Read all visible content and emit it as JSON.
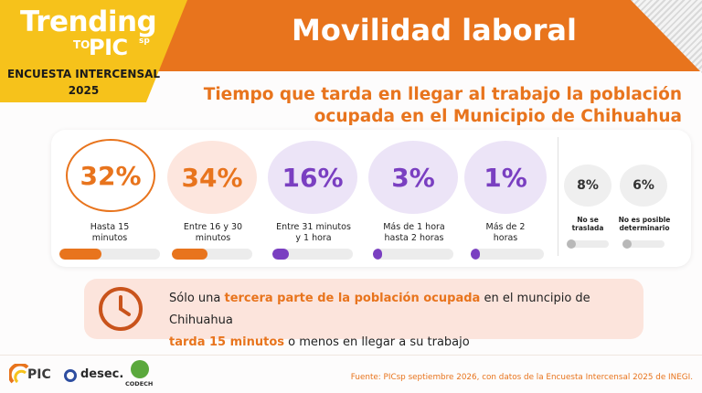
{
  "brand": {
    "line1": "Trending",
    "to": "TO",
    "pic": "PIC",
    "pic_suffix": "sp",
    "survey_line1": "ENCUESTA INTERCENSAL",
    "survey_line2": "2025"
  },
  "header": {
    "title": "Movilidad laboral"
  },
  "subtitle": {
    "line1": "Tiempo que tarda en llegar al trabajo la población",
    "line2": "ocupada en el Municipio de Chihuahua"
  },
  "stats": [
    {
      "value": "32%",
      "label_l1": "Hasta 15",
      "label_l2": "minutos",
      "fraction": 0.32,
      "color": "#e8741d",
      "circle_bg": "#ffffff",
      "ring": "#e8741d"
    },
    {
      "value": "34%",
      "label_l1": "Entre 16 y 30",
      "label_l2": "minutos",
      "fraction": 0.34,
      "color": "#e8741d",
      "circle_bg": "#fde6de",
      "ring": ""
    },
    {
      "value": "16%",
      "label_l1": "Entre 31 minutos",
      "label_l2": "y 1 hora",
      "fraction": 0.16,
      "color": "#7a3fc1",
      "circle_bg": "#ece4f7",
      "ring": ""
    },
    {
      "value": "3%",
      "label_l1": "Más de 1 hora",
      "label_l2": "hasta 2 horas",
      "fraction": 0.03,
      "color": "#7a3fc1",
      "circle_bg": "#ece4f7",
      "ring": ""
    },
    {
      "value": "1%",
      "label_l1": "Más de 2",
      "label_l2": "horas",
      "fraction": 0.01,
      "color": "#7a3fc1",
      "circle_bg": "#ece4f7",
      "ring": ""
    }
  ],
  "minor_stats": [
    {
      "value": "8%",
      "label_l1": "No se",
      "label_l2": "traslada",
      "fraction": 0.08
    },
    {
      "value": "6%",
      "label_l1": "No es posible",
      "label_l2": "determinario",
      "fraction": 0.06
    }
  ],
  "callout": {
    "icon": "clock-icon",
    "part1": "Sólo una ",
    "highlight1": "tercera parte de la población ocupada",
    "part2": " en el muncipio de Chihuahua",
    "highlight2": "tarda 15 minutos",
    "part3": " o menos en llegar a su trabajo"
  },
  "footer": {
    "logo_pic": "PIC",
    "logo_desec": "desec.",
    "logo_codech": "CODECH",
    "source": "Fuente: PICsp septiembre 2026, con datos de la Encuesta Intercensal 2025 de INEGI."
  },
  "colors": {
    "accent_orange": "#e8741d",
    "accent_purple": "#7a3fc1",
    "brand_yellow": "#f6c21b",
    "callout_bg": "#fce4dc"
  }
}
